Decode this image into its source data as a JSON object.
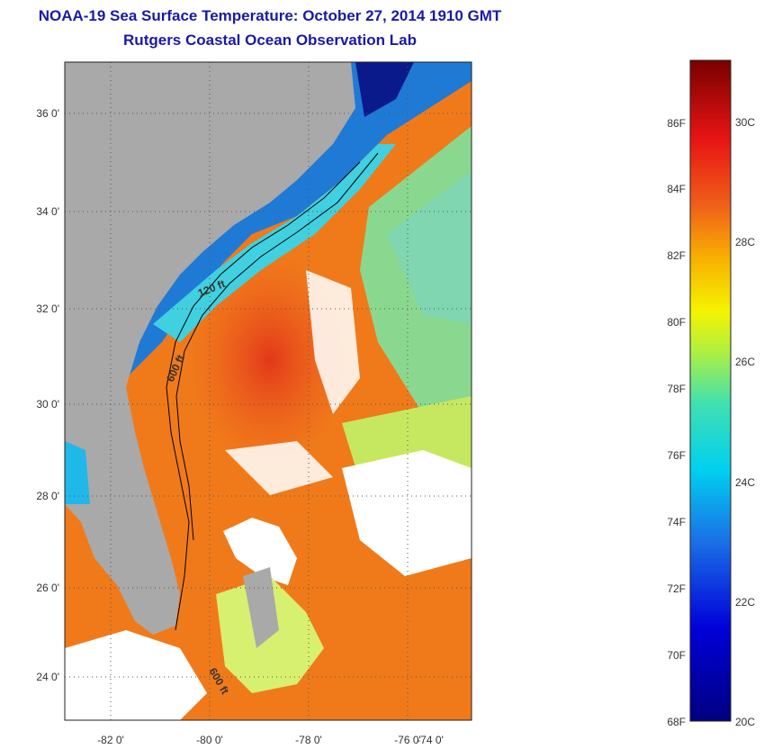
{
  "header": {
    "title": "NOAA-19 Sea Surface Temperature:  October 27, 2014 1910 GMT",
    "subtitle": "Rutgers Coastal Ocean Observation Lab"
  },
  "map": {
    "lon_labels": [
      "-82 0'",
      "-80 0'",
      "-78 0'",
      "-76 0'",
      "-74 0'"
    ],
    "lat_labels": [
      "36 0'",
      "34 0'",
      "32 0'",
      "30 0'",
      "28 0'",
      "26 0'",
      "24 0'"
    ],
    "contour_labels": [
      "120 ft",
      "600 ft",
      "600 ft"
    ]
  },
  "colorbar": {
    "fahrenheit": [
      "86F",
      "84F",
      "82F",
      "80F",
      "78F",
      "76F",
      "74F",
      "72F",
      "70F",
      "68F"
    ],
    "celsius": [
      "30C",
      "28C",
      "26C",
      "24C",
      "22C",
      "20C"
    ]
  },
  "colors": {
    "land": "#a9a9a9",
    "cloud": "#ffffff",
    "warm": "#ee5a1e",
    "gulfstream": "#f07a1a",
    "cool": "#1f7ad6",
    "cold": "#0a1a8a",
    "title": "#1a1aa6"
  }
}
